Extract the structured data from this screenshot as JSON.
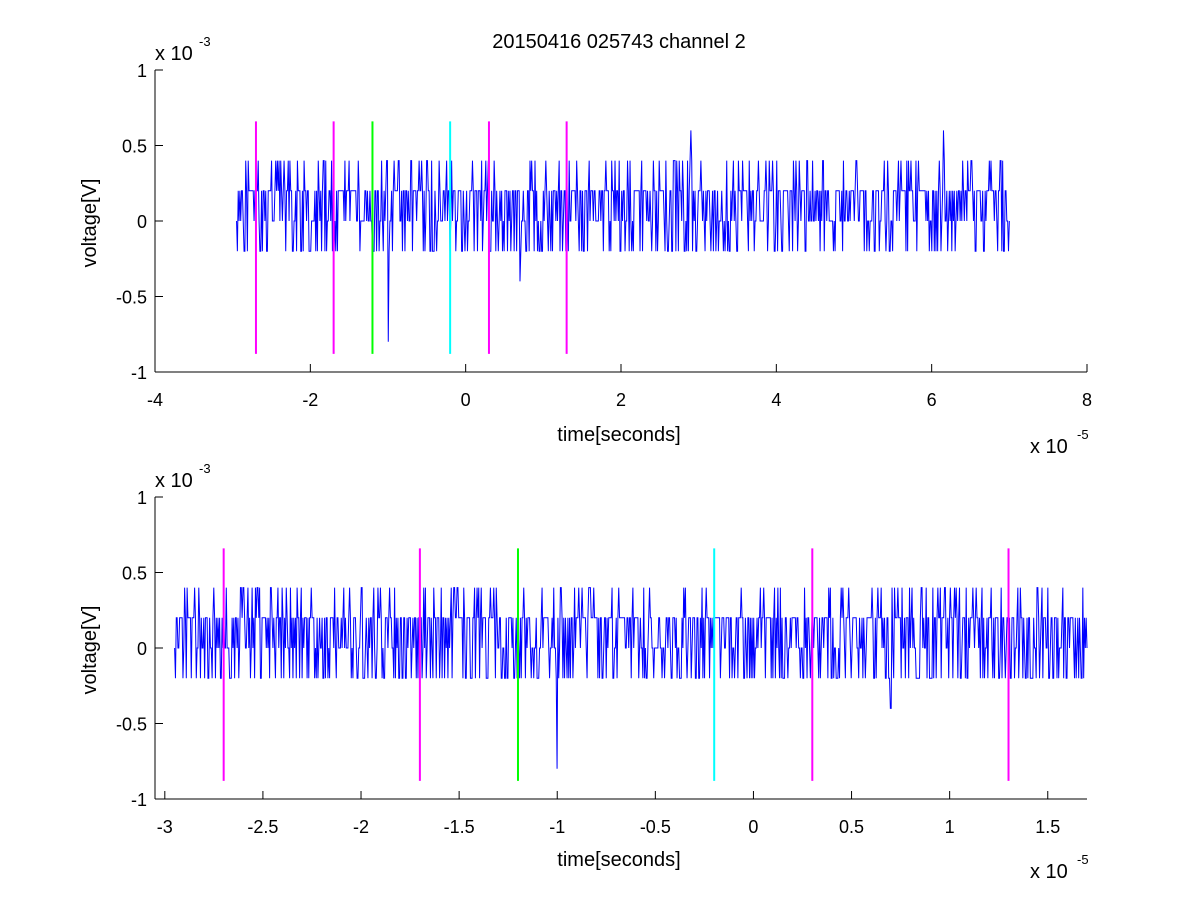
{
  "figure_title": "20150416 025743 channel 2",
  "colors": {
    "signal": "#0000ff",
    "magenta": "#ff00ff",
    "green": "#00ff00",
    "cyan": "#00ffff",
    "axes": "#000000"
  },
  "chart_data": [
    {
      "type": "line",
      "title": "20150416 025743 channel 2",
      "xlabel": "time[seconds]",
      "ylabel": "voltage[V]",
      "x_multiplier_label": "x 10",
      "x_multiplier_exp": "-5",
      "y_multiplier_label": "x 10",
      "y_multiplier_exp": "-3",
      "xlim": [
        -4e-05,
        8e-05
      ],
      "ylim": [
        -0.001,
        0.001
      ],
      "xticks": [
        -4,
        -2,
        0,
        2,
        4,
        6,
        8
      ],
      "xtick_labels": [
        "-4",
        "-2",
        "0",
        "2",
        "4",
        "6",
        "8"
      ],
      "yticks": [
        -1,
        -0.5,
        0,
        0.5,
        1
      ],
      "ytick_labels": [
        "-1",
        "-0.5",
        "0",
        "0.5",
        "1"
      ],
      "grid": false,
      "series": [
        {
          "style": "noise",
          "x_start": -2.95e-05,
          "x_end": 7e-05,
          "baseline": 0.0,
          "level_step": 0.0002,
          "dips": [
            {
              "x": -1e-05,
              "y": -0.0008
            },
            {
              "x": 7e-06,
              "y": -0.0004
            }
          ],
          "peaks": [
            {
              "x": 2.9e-05,
              "y": 0.0006
            },
            {
              "x": 6.15e-05,
              "y": 0.0006
            }
          ]
        }
      ],
      "markers": [
        {
          "x": -2.7e-05,
          "color": "magenta",
          "ymin": -0.00088,
          "ymax": 0.00066
        },
        {
          "x": -1.7e-05,
          "color": "magenta",
          "ymin": -0.00088,
          "ymax": 0.00066
        },
        {
          "x": -1.2e-05,
          "color": "green",
          "ymin": -0.00088,
          "ymax": 0.00066
        },
        {
          "x": -2e-06,
          "color": "cyan",
          "ymin": -0.00088,
          "ymax": 0.00066
        },
        {
          "x": 3e-06,
          "color": "magenta",
          "ymin": -0.00088,
          "ymax": 0.00066
        },
        {
          "x": 1.3e-05,
          "color": "magenta",
          "ymin": -0.00088,
          "ymax": 0.00066
        }
      ]
    },
    {
      "type": "line",
      "title": "",
      "xlabel": "time[seconds]",
      "ylabel": "voltage[V]",
      "x_multiplier_label": "x 10",
      "x_multiplier_exp": "-5",
      "y_multiplier_label": "x 10",
      "y_multiplier_exp": "-3",
      "xlim": [
        -3.05e-05,
        1.7e-05
      ],
      "ylim": [
        -0.001,
        0.001
      ],
      "xticks": [
        -3,
        -2.5,
        -2,
        -1.5,
        -1,
        -0.5,
        0,
        0.5,
        1,
        1.5
      ],
      "xtick_labels": [
        "-3",
        "-2.5",
        "-2",
        "-1.5",
        "-1",
        "-0.5",
        "0",
        "0.5",
        "1",
        "1.5"
      ],
      "yticks": [
        -1,
        -0.5,
        0,
        0.5,
        1
      ],
      "ytick_labels": [
        "-1",
        "-0.5",
        "0",
        "0.5",
        "1"
      ],
      "grid": false,
      "series": [
        {
          "style": "noise",
          "x_start": -2.95e-05,
          "x_end": 1.7e-05,
          "baseline": 0.0,
          "level_step": 0.0002,
          "dips": [
            {
              "x": -1e-05,
              "y": -0.0008
            },
            {
              "x": 7e-06,
              "y": -0.0004
            }
          ],
          "peaks": [
            {
              "x": -2.6e-05,
              "y": 0.0004
            }
          ]
        }
      ],
      "markers": [
        {
          "x": -2.7e-05,
          "color": "magenta",
          "ymin": -0.00088,
          "ymax": 0.00066
        },
        {
          "x": -1.7e-05,
          "color": "magenta",
          "ymin": -0.00088,
          "ymax": 0.00066
        },
        {
          "x": -1.2e-05,
          "color": "green",
          "ymin": -0.00088,
          "ymax": 0.00066
        },
        {
          "x": -2e-06,
          "color": "cyan",
          "ymin": -0.00088,
          "ymax": 0.00066
        },
        {
          "x": 3e-06,
          "color": "magenta",
          "ymin": -0.00088,
          "ymax": 0.00066
        },
        {
          "x": 1.3e-05,
          "color": "magenta",
          "ymin": -0.00088,
          "ymax": 0.00066
        }
      ]
    }
  ]
}
